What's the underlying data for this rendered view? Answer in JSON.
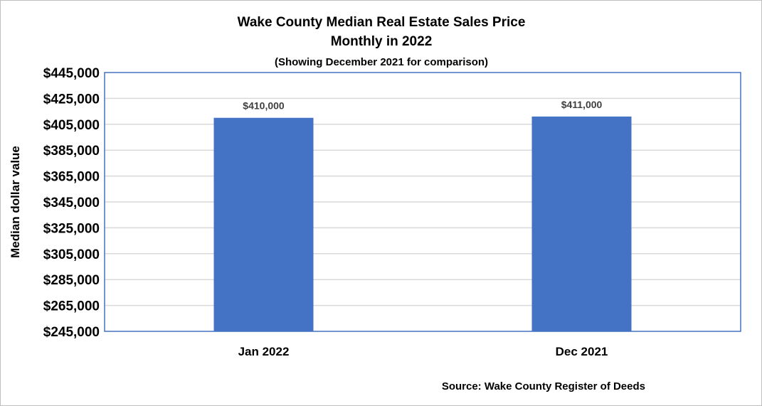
{
  "chart_data": {
    "type": "bar",
    "title": "Wake County Median Real Estate Sales Price",
    "title_line2": "Monthly in 2022",
    "subtitle": "(Showing December 2021 for comparison)",
    "ylabel": "Median dollar value",
    "xlabel": "",
    "categories": [
      "Jan 2022",
      "Dec 2021"
    ],
    "values": [
      410000,
      411000
    ],
    "data_labels": [
      "$410,000",
      "$411,000"
    ],
    "ylim": [
      245000,
      445000
    ],
    "ytick_step": 20000,
    "grid": true,
    "legend": "none",
    "source": "Source: Wake County Register of Deeds",
    "colors": {
      "bar": "#4472C4",
      "plot_border": "#4472C4",
      "grid": "#d9d9d9"
    }
  }
}
